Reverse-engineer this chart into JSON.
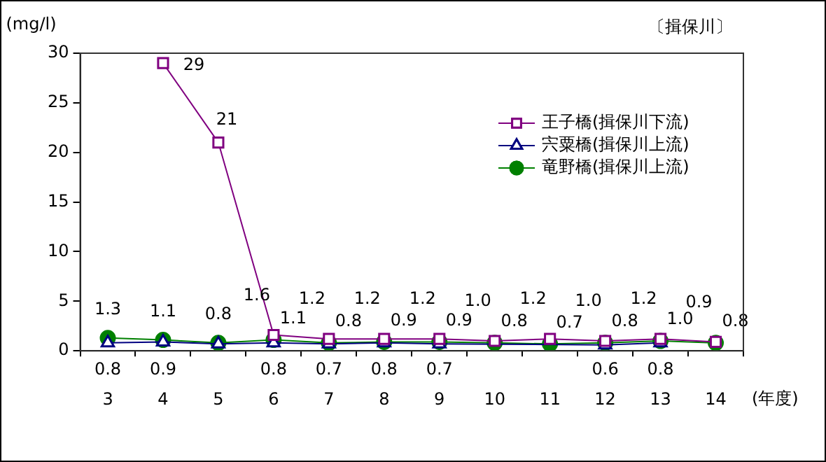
{
  "chart_data": {
    "type": "line",
    "title": "〔揖保川〕",
    "ylabel": "(mg/l)",
    "xlabel": "(年度)",
    "categories": [
      "3",
      "4",
      "5",
      "6",
      "7",
      "8",
      "9",
      "10",
      "11",
      "12",
      "13",
      "14"
    ],
    "ylim": [
      0,
      30
    ],
    "yticks": [
      0,
      5,
      10,
      15,
      20,
      25,
      30
    ],
    "grid": false,
    "legend": "right",
    "series": [
      {
        "name": "王子橋(揖保川下流)",
        "color": "#800080",
        "marker": "square",
        "values": [
          null,
          29,
          21,
          1.6,
          1.2,
          1.2,
          1.2,
          1.0,
          1.2,
          1.0,
          1.2,
          0.9
        ],
        "value_labels": [
          null,
          "29",
          "21",
          "1.6",
          "1.2",
          "1.2",
          "1.2",
          "1.0",
          "1.2",
          "1.0",
          "1.2",
          "0.9"
        ]
      },
      {
        "name": "宍粟橋(揖保川上流)",
        "color": "#000080",
        "marker": "triangle",
        "values": [
          0.8,
          0.9,
          0.7,
          0.8,
          0.7,
          0.8,
          0.7,
          null,
          null,
          0.6,
          0.8,
          null
        ],
        "value_labels": [
          "0.8",
          "0.9",
          null,
          "0.8",
          "0.7",
          "0.8",
          "0.7",
          null,
          null,
          "0.6",
          "0.8",
          null
        ]
      },
      {
        "name": "竜野橋(揖保川上流)",
        "color": "#008000",
        "marker": "circle",
        "values": [
          1.3,
          1.1,
          0.8,
          1.1,
          0.8,
          0.9,
          0.9,
          0.8,
          0.7,
          0.8,
          1.0,
          0.8
        ],
        "value_labels": [
          "1.3",
          "1.1",
          "0.8",
          "1.1",
          "0.8",
          "0.9",
          "0.9",
          "0.8",
          "0.7",
          "0.8",
          "1.0",
          "0.8"
        ]
      }
    ]
  }
}
